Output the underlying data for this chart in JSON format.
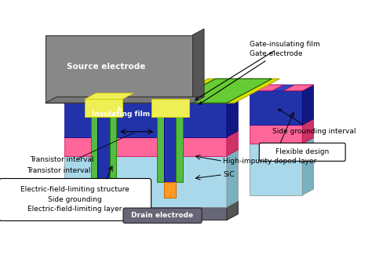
{
  "bg_color": "#ffffff",
  "colors": {
    "gray": "#888888",
    "dark_gray": "#555555",
    "mid_gray": "#777777",
    "light_gray": "#aaaaaa",
    "sky_blue": "#a8d8ea",
    "sky_blue_dark": "#7ab0c0",
    "sky_blue_top": "#c8eaf4",
    "blue": "#2233aa",
    "blue_dark": "#111880",
    "blue_top": "#3344bb",
    "pink": "#ff6699",
    "pink_dark": "#cc3366",
    "pink_top": "#ffaacc",
    "green": "#55bb44",
    "green_dark": "#228800",
    "yellow": "#eeee55",
    "yellow_dark": "#cccc00",
    "orange": "#ff9922",
    "orange_dark": "#cc6600",
    "drain_gray": "#666677",
    "gate_yellow": "#dddd00",
    "gate_green": "#66cc33"
  },
  "labels": {
    "source_electrode": "Source electrode",
    "insulating_film": "Insulating film",
    "gate_insulating_film": "Gate-insulating film",
    "gate_electrode": "Gate electrode",
    "side_grounding_interval": "Side grounding interval",
    "flexible_design": "Flexible design",
    "transistor_interval": "Transistor interval",
    "ef_limiting_structure": "Electric-field-limiting structure",
    "side_grounding": "Side grounding",
    "ef_limiting_layer": "Electric-field-limiting layer",
    "high_impurity": "High-impurity doped layer",
    "sic": "SiC",
    "drain_electrode": "Drain electrode"
  }
}
